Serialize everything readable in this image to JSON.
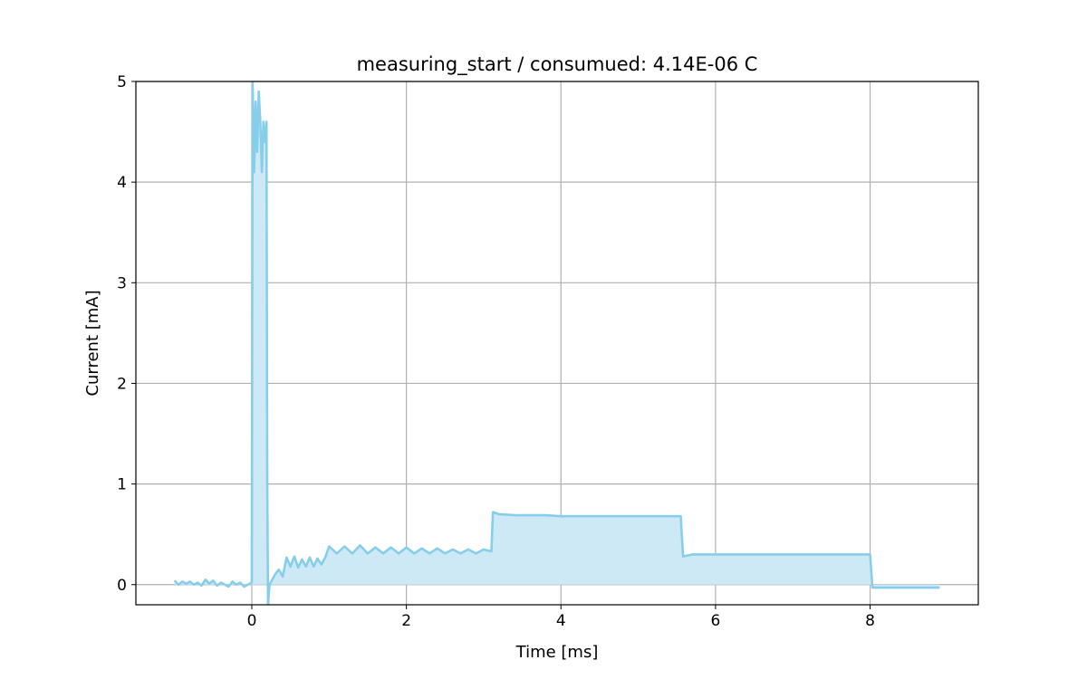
{
  "chart_data": {
    "type": "area",
    "title": "measuring_start / consumued: 4.14E-06 C",
    "xlabel": "Time [ms]",
    "ylabel": "Current [mA]",
    "xlim": [
      -1.5,
      9.4
    ],
    "ylim": [
      -0.2,
      5
    ],
    "xticks": [
      0,
      2,
      4,
      6,
      8
    ],
    "yticks": [
      0,
      1,
      2,
      3,
      4,
      5
    ],
    "xtick_labels": [
      "0",
      "2",
      "4",
      "6",
      "8"
    ],
    "ytick_labels": [
      "0",
      "1",
      "2",
      "3",
      "4",
      "5"
    ],
    "grid": true,
    "line_color": "#87ceeb",
    "fill_color": "#cde9f6",
    "series": [
      {
        "x": [
          -1.0,
          -0.95,
          -0.9,
          -0.85,
          -0.8,
          -0.75,
          -0.7,
          -0.65,
          -0.6,
          -0.55,
          -0.5,
          -0.45,
          -0.4,
          -0.35,
          -0.3,
          -0.25,
          -0.2,
          -0.15,
          -0.1,
          -0.05,
          0.0,
          0.01,
          0.03,
          0.05,
          0.07,
          0.09,
          0.11,
          0.13,
          0.15,
          0.17,
          0.19,
          0.2,
          0.21,
          0.23,
          0.3,
          0.35,
          0.4,
          0.45,
          0.5,
          0.55,
          0.6,
          0.65,
          0.7,
          0.75,
          0.8,
          0.85,
          0.9,
          0.95,
          1.0,
          1.1,
          1.2,
          1.3,
          1.4,
          1.5,
          1.6,
          1.7,
          1.8,
          1.9,
          2.0,
          2.1,
          2.2,
          2.3,
          2.4,
          2.5,
          2.6,
          2.7,
          2.8,
          2.9,
          3.0,
          3.1,
          3.12,
          3.2,
          3.4,
          3.6,
          3.8,
          4.0,
          4.2,
          4.4,
          4.6,
          4.8,
          5.0,
          5.2,
          5.4,
          5.55,
          5.58,
          5.7,
          6.0,
          6.5,
          7.0,
          7.5,
          8.0,
          8.03,
          8.1,
          8.5,
          8.9
        ],
        "y": [
          0.04,
          0.0,
          0.03,
          0.01,
          0.03,
          0.0,
          0.02,
          -0.01,
          0.05,
          0.01,
          0.04,
          -0.01,
          0.02,
          0.0,
          -0.02,
          0.03,
          0.0,
          0.02,
          -0.02,
          0.0,
          0.02,
          5.0,
          4.1,
          4.8,
          4.3,
          4.9,
          4.6,
          4.1,
          4.6,
          4.4,
          4.6,
          1.0,
          -0.2,
          0.0,
          0.1,
          0.15,
          0.08,
          0.27,
          0.18,
          0.28,
          0.17,
          0.25,
          0.18,
          0.27,
          0.18,
          0.26,
          0.2,
          0.27,
          0.38,
          0.31,
          0.38,
          0.31,
          0.39,
          0.31,
          0.37,
          0.31,
          0.37,
          0.31,
          0.37,
          0.31,
          0.36,
          0.31,
          0.36,
          0.31,
          0.35,
          0.31,
          0.35,
          0.31,
          0.35,
          0.33,
          0.72,
          0.7,
          0.69,
          0.69,
          0.69,
          0.68,
          0.68,
          0.68,
          0.68,
          0.68,
          0.68,
          0.68,
          0.68,
          0.68,
          0.28,
          0.3,
          0.3,
          0.3,
          0.3,
          0.3,
          0.3,
          -0.03,
          -0.03,
          -0.03,
          -0.03
        ]
      }
    ]
  }
}
